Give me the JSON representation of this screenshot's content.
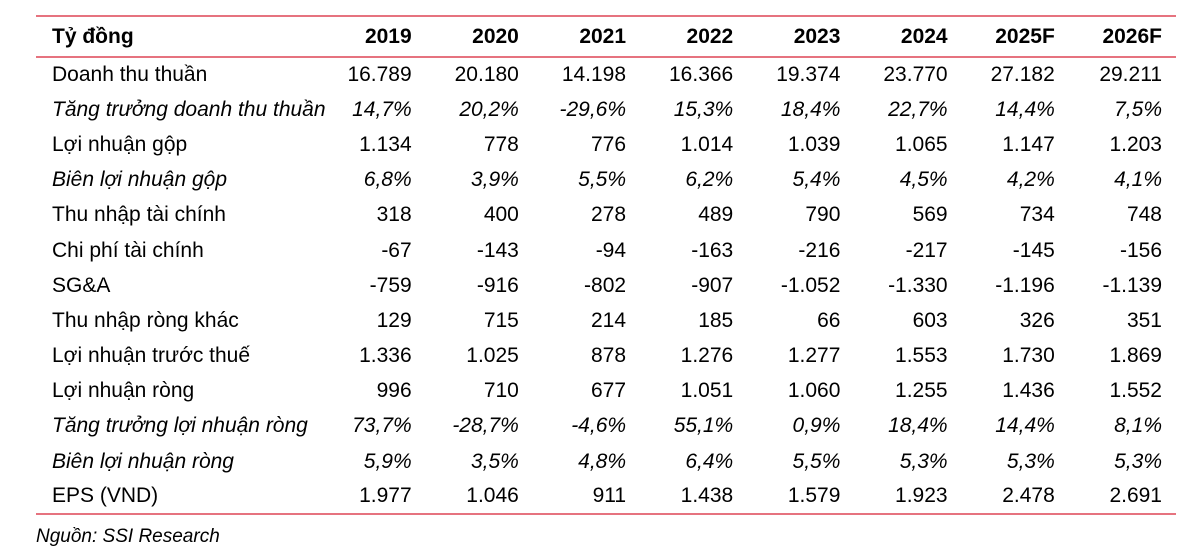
{
  "table": {
    "header": [
      "Tỷ đồng",
      "2019",
      "2020",
      "2021",
      "2022",
      "2023",
      "2024",
      "2025F",
      "2026F"
    ],
    "rows": [
      {
        "label": "Doanh thu thuần",
        "italic": false,
        "values": [
          "16.789",
          "20.180",
          "14.198",
          "16.366",
          "19.374",
          "23.770",
          "27.182",
          "29.211"
        ]
      },
      {
        "label": "Tăng trưởng doanh thu thuần",
        "italic": true,
        "values": [
          "14,7%",
          "20,2%",
          "-29,6%",
          "15,3%",
          "18,4%",
          "22,7%",
          "14,4%",
          "7,5%"
        ]
      },
      {
        "label": "Lợi nhuận gộp",
        "italic": false,
        "values": [
          "1.134",
          "778",
          "776",
          "1.014",
          "1.039",
          "1.065",
          "1.147",
          "1.203"
        ]
      },
      {
        "label": "Biên lợi nhuận gộp",
        "italic": true,
        "values": [
          "6,8%",
          "3,9%",
          "5,5%",
          "6,2%",
          "5,4%",
          "4,5%",
          "4,2%",
          "4,1%"
        ]
      },
      {
        "label": "Thu nhập tài chính",
        "italic": false,
        "values": [
          "318",
          "400",
          "278",
          "489",
          "790",
          "569",
          "734",
          "748"
        ]
      },
      {
        "label": "Chi phí tài chính",
        "italic": false,
        "values": [
          "-67",
          "-143",
          "-94",
          "-163",
          "-216",
          "-217",
          "-145",
          "-156"
        ]
      },
      {
        "label": "SG&A",
        "italic": false,
        "values": [
          "-759",
          "-916",
          "-802",
          "-907",
          "-1.052",
          "-1.330",
          "-1.196",
          "-1.139"
        ]
      },
      {
        "label": "Thu nhập ròng khác",
        "italic": false,
        "values": [
          "129",
          "715",
          "214",
          "185",
          "66",
          "603",
          "326",
          "351"
        ]
      },
      {
        "label": "Lợi nhuận trước thuế",
        "italic": false,
        "values": [
          "1.336",
          "1.025",
          "878",
          "1.276",
          "1.277",
          "1.553",
          "1.730",
          "1.869"
        ]
      },
      {
        "label": "Lợi nhuận ròng",
        "italic": false,
        "values": [
          "996",
          "710",
          "677",
          "1.051",
          "1.060",
          "1.255",
          "1.436",
          "1.552"
        ]
      },
      {
        "label": "Tăng trưởng lợi nhuận ròng",
        "italic": true,
        "values": [
          "73,7%",
          "-28,7%",
          "-4,6%",
          "55,1%",
          "0,9%",
          "18,4%",
          "14,4%",
          "8,1%"
        ]
      },
      {
        "label": "Biên lợi nhuận ròng",
        "italic": true,
        "values": [
          "5,9%",
          "3,5%",
          "4,8%",
          "6,4%",
          "5,5%",
          "5,3%",
          "5,3%",
          "5,3%"
        ]
      },
      {
        "label": "EPS (VND)",
        "italic": false,
        "values": [
          "1.977",
          "1.046",
          "911",
          "1.438",
          "1.579",
          "1.923",
          "2.478",
          "2.691"
        ]
      }
    ]
  },
  "source": "Nguồn: SSI Research",
  "colors": {
    "rule": "#e6737f"
  }
}
